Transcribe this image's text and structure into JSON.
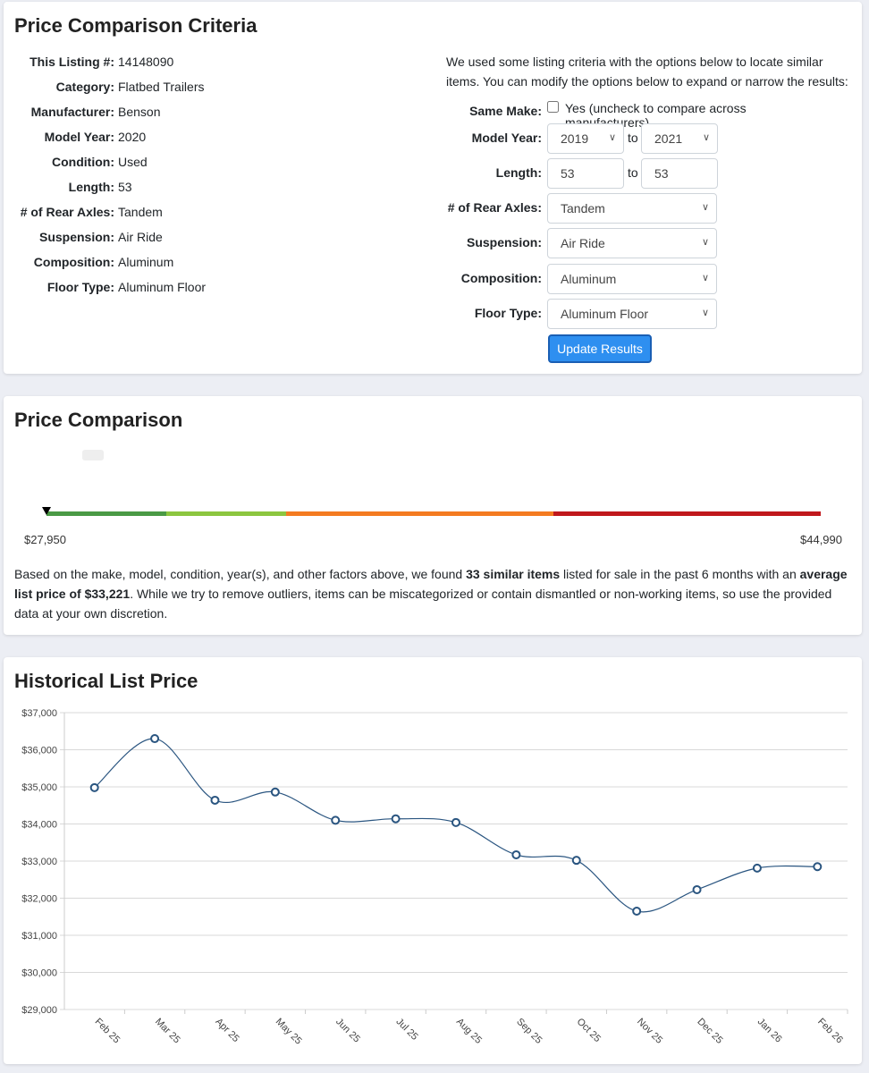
{
  "criteria": {
    "title": "Price Comparison Criteria",
    "listing": [
      {
        "k": "This Listing #:",
        "v": "14148090"
      },
      {
        "k": "Category:",
        "v": "Flatbed Trailers"
      },
      {
        "k": "Manufacturer:",
        "v": "Benson"
      },
      {
        "k": "Model Year:",
        "v": "2020"
      },
      {
        "k": "Condition:",
        "v": "Used"
      },
      {
        "k": "Length:",
        "v": "53"
      },
      {
        "k": "# of Rear Axles:",
        "v": "Tandem"
      },
      {
        "k": "Suspension:",
        "v": "Air Ride"
      },
      {
        "k": "Composition:",
        "v": "Aluminum"
      },
      {
        "k": "Floor Type:",
        "v": "Aluminum Floor"
      }
    ],
    "intro": "We used some listing criteria with the options below to locate similar items. You can modify the options below to expand or narrow the results:",
    "same_make_label": "Same Make:",
    "same_make_text": "Yes (uncheck to compare across manufacturers)",
    "model_year_label": "Model Year:",
    "year_from": "2019",
    "year_to": "2021",
    "to": "to",
    "length_label": "Length:",
    "length_from": "53",
    "length_to": "53",
    "axles_label": "# of Rear Axles:",
    "axles": "Tandem",
    "suspension_label": "Suspension:",
    "suspension": "Air Ride",
    "composition_label": "Composition:",
    "composition": "Aluminum",
    "floor_label": "Floor Type:",
    "floor": "Aluminum Floor",
    "update": "Update Results"
  },
  "comparison": {
    "title": "Price Comparison",
    "min": "$27,950",
    "max": "$44,990",
    "marker_fraction": 0,
    "colors": [
      "#4a9a45",
      "#8cc63f",
      "#f47b20",
      "#c0181c"
    ],
    "p1": "Based on the make, model, condition, year(s), and other factors above, we found ",
    "b1": "33 similar items",
    "p2": " listed for sale in the past 6 months with an ",
    "b2": "average list price of $33,221",
    "p3": ". While we try to remove outliers, items can be miscategorized or contain dismantled or non-working items, so use the provided data at your own discretion."
  },
  "history": {
    "title": "Historical List Price"
  },
  "chart_data": {
    "type": "line",
    "title": "Historical List Price",
    "xlabel": "",
    "ylabel": "",
    "categories": [
      "Feb 25",
      "Mar 25",
      "Apr 25",
      "May 25",
      "Jun 25",
      "Jul 25",
      "Aug 25",
      "Sep 25",
      "Oct 25",
      "Nov 25",
      "Dec 25",
      "Jan 26",
      "Feb 26"
    ],
    "values": [
      34980,
      36300,
      34640,
      34860,
      34100,
      34140,
      34040,
      33170,
      33020,
      31650,
      32230,
      32810,
      32850
    ],
    "ylim": [
      29000,
      37000
    ],
    "yticks": [
      "$29,000",
      "$30,000",
      "$31,000",
      "$32,000",
      "$33,000",
      "$34,000",
      "$35,000",
      "$36,000",
      "$37,000"
    ],
    "grid": true,
    "color": "#2a5580"
  }
}
